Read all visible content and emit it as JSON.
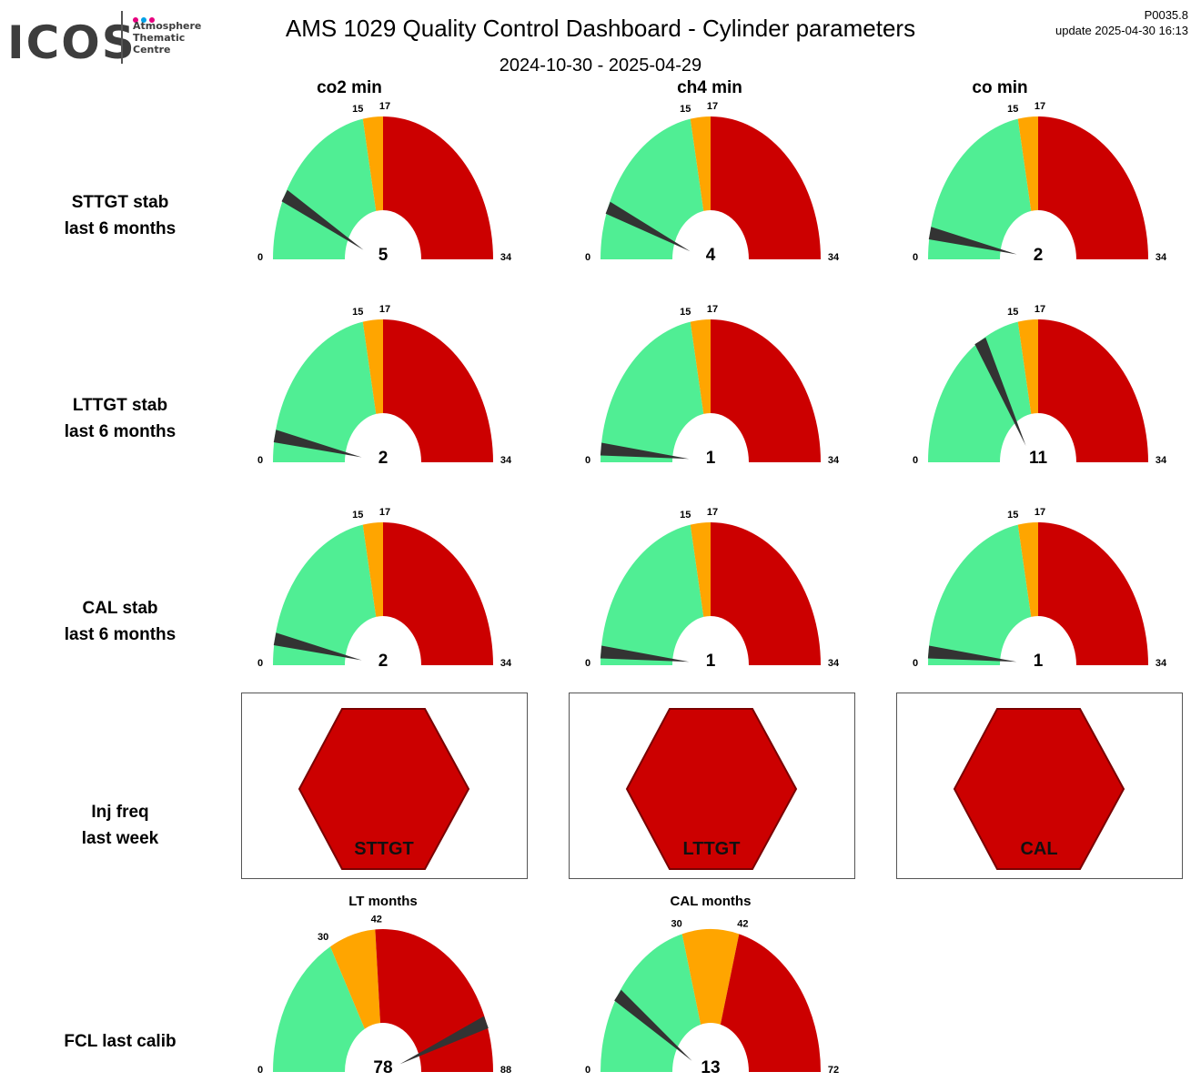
{
  "header": {
    "logo_text": "ICOS",
    "logo_sub": [
      "Atmosphere",
      "Thematic",
      "Centre"
    ],
    "title": "AMS 1029 Quality Control Dashboard - Cylinder parameters",
    "subtitle": "2024-10-30 - 2025-04-29",
    "code": "P0035.8",
    "update": "update  2025-04-30 16:13"
  },
  "colors": {
    "green": "#50ee94",
    "orange": "#ffa500",
    "red": "#cc0000",
    "needle": "#333333",
    "hex_border": "#7a0000"
  },
  "columns": [
    "co2 min",
    "ch4 min",
    "co min"
  ],
  "rows": [
    {
      "line1": "STTGT stab",
      "line2": "last 6 months"
    },
    {
      "line1": "LTTGT stab",
      "line2": "last 6 months"
    },
    {
      "line1": "CAL stab",
      "line2": "last 6 months"
    },
    {
      "line1": "Inj freq",
      "line2": "last week"
    },
    {
      "line1": "FCL last calib",
      "line2": ""
    }
  ],
  "chart_data": [
    {
      "type": "gauge",
      "row": "STTGT stab last 6 months",
      "column": "co2 min",
      "min": 0,
      "max": 34,
      "thresholds": [
        15,
        17
      ],
      "value": 5
    },
    {
      "type": "gauge",
      "row": "STTGT stab last 6 months",
      "column": "ch4 min",
      "min": 0,
      "max": 34,
      "thresholds": [
        15,
        17
      ],
      "value": 4
    },
    {
      "type": "gauge",
      "row": "STTGT stab last 6 months",
      "column": "co min",
      "min": 0,
      "max": 34,
      "thresholds": [
        15,
        17
      ],
      "value": 2
    },
    {
      "type": "gauge",
      "row": "LTTGT stab last 6 months",
      "column": "co2 min",
      "min": 0,
      "max": 34,
      "thresholds": [
        15,
        17
      ],
      "value": 2
    },
    {
      "type": "gauge",
      "row": "LTTGT stab last 6 months",
      "column": "ch4 min",
      "min": 0,
      "max": 34,
      "thresholds": [
        15,
        17
      ],
      "value": 1
    },
    {
      "type": "gauge",
      "row": "LTTGT stab last 6 months",
      "column": "co min",
      "min": 0,
      "max": 34,
      "thresholds": [
        15,
        17
      ],
      "value": 11
    },
    {
      "type": "gauge",
      "row": "CAL stab last 6 months",
      "column": "co2 min",
      "min": 0,
      "max": 34,
      "thresholds": [
        15,
        17
      ],
      "value": 2
    },
    {
      "type": "gauge",
      "row": "CAL stab last 6 months",
      "column": "ch4 min",
      "min": 0,
      "max": 34,
      "thresholds": [
        15,
        17
      ],
      "value": 1
    },
    {
      "type": "gauge",
      "row": "CAL stab last 6 months",
      "column": "co min",
      "min": 0,
      "max": 34,
      "thresholds": [
        15,
        17
      ],
      "value": 1
    },
    {
      "type": "gauge",
      "row": "FCL last calib",
      "title": "LT months",
      "min": 0,
      "max": 88,
      "thresholds": [
        30,
        42
      ],
      "value": 78
    },
    {
      "type": "gauge",
      "row": "FCL last calib",
      "title": "CAL months",
      "min": 0,
      "max": 72,
      "thresholds": [
        30,
        42
      ],
      "value": 13
    }
  ],
  "status_tiles": [
    {
      "row": "Inj freq last week",
      "label": "STTGT",
      "status": "red"
    },
    {
      "row": "Inj freq last week",
      "label": "LTTGT",
      "status": "red"
    },
    {
      "row": "Inj freq last week",
      "label": "CAL",
      "status": "red"
    }
  ]
}
